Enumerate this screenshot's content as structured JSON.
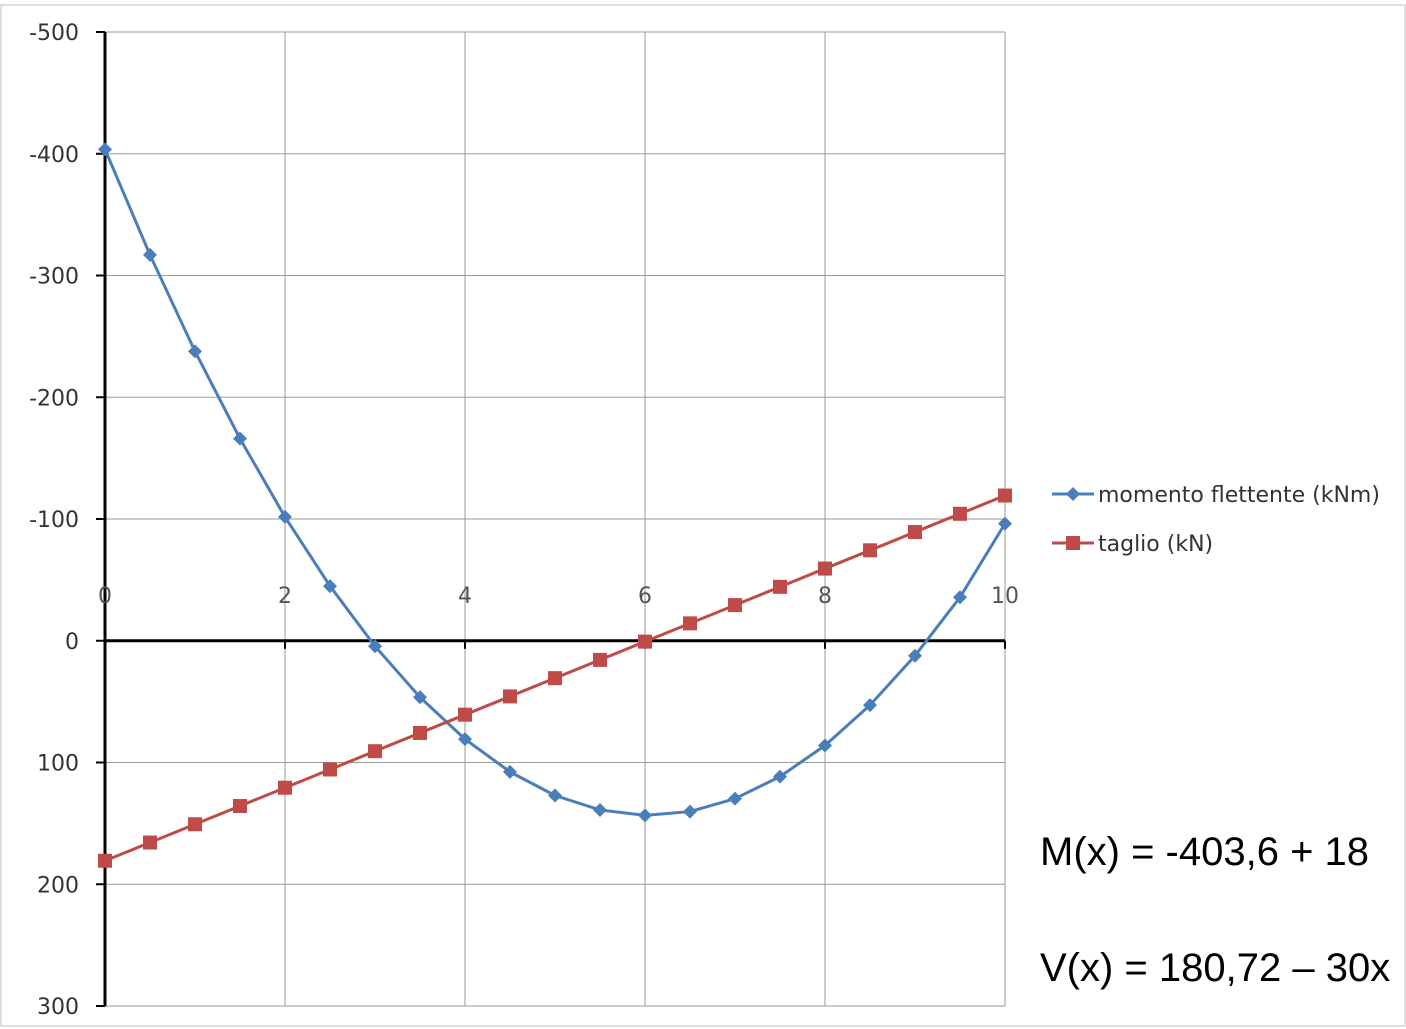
{
  "chart_data": {
    "type": "line",
    "title": "",
    "xlabel": "",
    "ylabel": "",
    "xlim": [
      0,
      10
    ],
    "ylim": [
      -500,
      300
    ],
    "y_inverted": true,
    "grid": true,
    "legend_position": "right",
    "x_ticks": [
      0,
      2,
      4,
      6,
      8,
      10
    ],
    "x_tick_labels": [
      "0",
      "2",
      "4",
      "6",
      "8",
      "10"
    ],
    "y_ticks": [
      -500,
      -400,
      -300,
      -200,
      -100,
      0,
      100,
      200,
      300
    ],
    "y_tick_labels": [
      "-500",
      "-400",
      "-300",
      "-200",
      "-100",
      "0",
      "100",
      "200",
      "300"
    ],
    "x": [
      0,
      0.5,
      1,
      1.5,
      2,
      2.5,
      3,
      3.5,
      4,
      4.5,
      5,
      5.5,
      6,
      6.5,
      7,
      7.5,
      8,
      8.5,
      9,
      9.5,
      10
    ],
    "series": [
      {
        "name": "momento flettente (kNm)",
        "color": "#4a7ebb",
        "marker": "diamond",
        "values": [
          -403.6,
          -316.9,
          -237.7,
          -166.0,
          -101.7,
          -44.9,
          4.5,
          46.4,
          80.8,
          107.7,
          127.1,
          139.0,
          143.4,
          140.3,
          129.7,
          111.6,
          86.0,
          52.9,
          12.3,
          -35.7,
          -96.2
        ]
      },
      {
        "name": "taglio (kN)",
        "color": "#be4b48",
        "marker": "square",
        "values": [
          180.72,
          165.72,
          150.72,
          135.72,
          120.72,
          105.72,
          90.72,
          75.72,
          60.72,
          45.72,
          30.72,
          15.72,
          0.72,
          -14.28,
          -29.28,
          -44.28,
          -59.28,
          -74.28,
          -89.28,
          -104.28,
          -119.28
        ]
      }
    ]
  },
  "formulas": {
    "moment": "M(x) = -403,6 +  18",
    "shear": "V(x) = 180,72 – 30x"
  },
  "colors": {
    "grid": "#9a9a9a",
    "axis": "#000000",
    "frame": "#bfbfbf"
  }
}
